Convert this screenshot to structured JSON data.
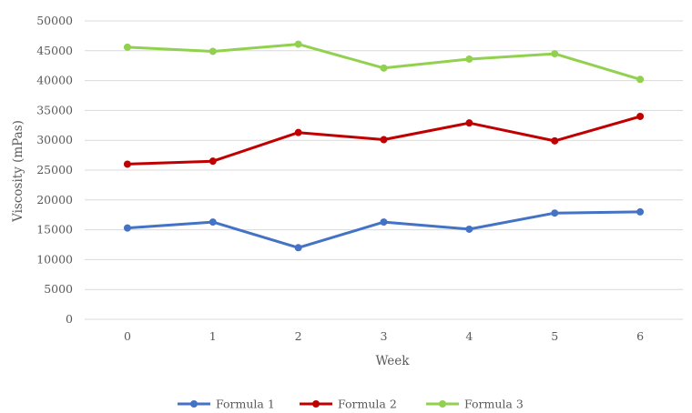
{
  "chart_data": {
    "type": "line",
    "title": "",
    "xlabel": "Week",
    "ylabel": "Viscosity (mPas)",
    "x": [
      "0",
      "1",
      "2",
      "3",
      "4",
      "5",
      "6"
    ],
    "ylim": [
      0,
      50000
    ],
    "yticks": [
      0,
      5000,
      10000,
      15000,
      20000,
      25000,
      30000,
      35000,
      40000,
      45000,
      50000
    ],
    "grid": true,
    "legend_position": "bottom",
    "series": [
      {
        "name": "Formula 1",
        "color": "#4472C4",
        "values": [
          15300,
          16300,
          12000,
          16300,
          15100,
          17800,
          18000
        ]
      },
      {
        "name": "Formula 2",
        "color": "#C00000",
        "values": [
          26000,
          26500,
          31300,
          30100,
          32900,
          29900,
          34000
        ]
      },
      {
        "name": "Formula 3",
        "color": "#92D050",
        "values": [
          45600,
          44900,
          46100,
          42100,
          43600,
          44500,
          40200
        ]
      }
    ]
  }
}
